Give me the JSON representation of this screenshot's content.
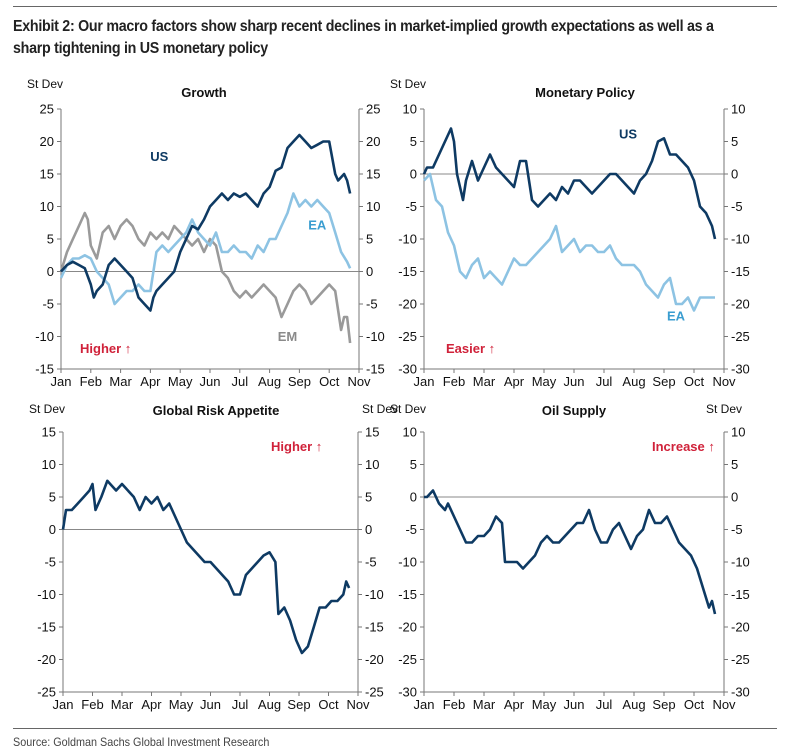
{
  "header": {
    "title": "Exhibit 2: Our macro factors show sharp recent declines in market-implied growth expectations as well as a sharp tightening in US monetary policy"
  },
  "footer": {
    "source": "Source: Goldman Sachs Global Investment Research"
  },
  "colors": {
    "us_navy": "#0e3a63",
    "ea_lightblue": "#8dc3e3",
    "em_gray": "#9a9a9a",
    "annotation_red": "#d0223a",
    "axis_gray": "#777777"
  },
  "chart_data": [
    {
      "id": "growth",
      "type": "line",
      "title": "Growth",
      "ylabel_left": "St Dev",
      "ylabel_right": "",
      "ylim": [
        -15,
        25
      ],
      "yticks": [
        25,
        20,
        15,
        10,
        5,
        0,
        -5,
        -10,
        -15
      ],
      "categories": [
        "Jan",
        "Feb",
        "Mar",
        "Apr",
        "May",
        "Jun",
        "Jul",
        "Aug",
        "Sep",
        "Oct",
        "Nov"
      ],
      "annotation": "Higher ↑",
      "annotation_pos": "bottom-left",
      "x_unit": "months since Jan 1",
      "series": [
        {
          "name": "US",
          "label_color": "#0e3a63",
          "color": "#0e3a63",
          "x": [
            0,
            0.2,
            0.4,
            0.6,
            0.8,
            1.0,
            1.1,
            1.2,
            1.4,
            1.6,
            1.8,
            2.0,
            2.2,
            2.4,
            2.6,
            2.8,
            3.0,
            3.1,
            3.2,
            3.4,
            3.6,
            3.8,
            4.0,
            4.2,
            4.4,
            4.6,
            4.8,
            5.0,
            5.2,
            5.4,
            5.6,
            5.8,
            6.0,
            6.2,
            6.4,
            6.6,
            6.8,
            7.0,
            7.2,
            7.4,
            7.6,
            7.8,
            8.0,
            8.2,
            8.4,
            8.6,
            8.8,
            9.0,
            9.2,
            9.3,
            9.5,
            9.6,
            9.7
          ],
          "y": [
            0,
            1,
            1.5,
            1,
            0.5,
            -2,
            -4,
            -3,
            -2,
            1,
            2,
            1,
            0,
            -1,
            -4,
            -5,
            -6,
            -4,
            -3,
            -2,
            -1,
            0,
            3,
            5,
            7,
            6.5,
            8,
            10,
            11,
            12,
            11,
            12,
            11.5,
            12,
            11,
            10,
            12,
            13,
            15.5,
            16,
            19,
            20,
            21,
            20,
            19,
            19.5,
            20,
            20,
            15,
            14,
            15,
            14,
            12
          ]
        },
        {
          "name": "EA",
          "label_color": "#3a9dd0",
          "color": "#8dc3e3",
          "x": [
            0,
            0.2,
            0.4,
            0.6,
            0.8,
            1.0,
            1.2,
            1.4,
            1.6,
            1.8,
            2.0,
            2.2,
            2.4,
            2.6,
            2.8,
            3.0,
            3.2,
            3.4,
            3.6,
            3.8,
            4.0,
            4.2,
            4.4,
            4.6,
            4.8,
            5.0,
            5.2,
            5.4,
            5.6,
            5.8,
            6.0,
            6.2,
            6.4,
            6.6,
            6.8,
            7.0,
            7.2,
            7.4,
            7.6,
            7.8,
            8.0,
            8.2,
            8.4,
            8.6,
            8.8,
            9.0,
            9.2,
            9.4,
            9.6,
            9.7
          ],
          "y": [
            -1,
            1,
            2,
            2,
            2.5,
            2,
            0,
            -1,
            -2,
            -5,
            -4,
            -3,
            -3,
            -2,
            -3,
            -3,
            3,
            4,
            3,
            4,
            5,
            6,
            8,
            6,
            5,
            4,
            6,
            3,
            3,
            4,
            3,
            3,
            2,
            4,
            3,
            5,
            5,
            7,
            9,
            12,
            10,
            11,
            10,
            11,
            10,
            9,
            6,
            3,
            1.5,
            0.5
          ]
        },
        {
          "name": "EM",
          "label_color": "#8a8a8a",
          "color": "#9a9a9a",
          "x": [
            0,
            0.2,
            0.4,
            0.6,
            0.8,
            0.9,
            1.0,
            1.2,
            1.4,
            1.6,
            1.8,
            2.0,
            2.2,
            2.4,
            2.6,
            2.8,
            3.0,
            3.2,
            3.4,
            3.6,
            3.8,
            4.0,
            4.2,
            4.4,
            4.6,
            4.8,
            5.0,
            5.2,
            5.4,
            5.6,
            5.8,
            6.0,
            6.2,
            6.4,
            6.6,
            6.8,
            7.0,
            7.2,
            7.4,
            7.6,
            7.8,
            8.0,
            8.2,
            8.4,
            8.6,
            8.8,
            9.0,
            9.2,
            9.4,
            9.5,
            9.6,
            9.7
          ],
          "y": [
            0,
            3,
            5,
            7,
            9,
            8,
            4,
            2,
            6,
            7,
            5,
            7,
            8,
            7,
            5,
            4,
            6,
            5,
            6,
            5,
            7,
            6,
            5,
            4,
            5,
            3,
            5,
            4,
            0,
            -1,
            -3,
            -4,
            -3,
            -4,
            -3,
            -2,
            -3,
            -4,
            -7,
            -5,
            -3,
            -2,
            -3,
            -5,
            -4,
            -3,
            -2,
            -3,
            -9,
            -7,
            -7,
            -11
          ]
        }
      ]
    },
    {
      "id": "monetary",
      "type": "line",
      "title": "Monetary Policy",
      "ylabel_left": "St Dev",
      "ylabel_right": "",
      "ylim": [
        -30,
        10
      ],
      "yticks": [
        10,
        5,
        0,
        -5,
        -10,
        -15,
        -20,
        -25,
        -30
      ],
      "categories": [
        "Jan",
        "Feb",
        "Mar",
        "Apr",
        "May",
        "Jun",
        "Jul",
        "Aug",
        "Sep",
        "Oct",
        "Nov"
      ],
      "annotation": "Easier ↑",
      "annotation_pos": "bottom-left",
      "x_unit": "months since Jan 1",
      "series": [
        {
          "name": "US",
          "label_color": "#0e3a63",
          "color": "#0e3a63",
          "x": [
            0,
            0.1,
            0.3,
            0.5,
            0.6,
            0.8,
            0.9,
            1.0,
            1.1,
            1.3,
            1.4,
            1.6,
            1.8,
            2.0,
            2.2,
            2.4,
            2.6,
            2.8,
            3.0,
            3.2,
            3.4,
            3.6,
            3.8,
            4.0,
            4.2,
            4.4,
            4.6,
            4.8,
            5.0,
            5.2,
            5.4,
            5.6,
            5.8,
            6.0,
            6.2,
            6.4,
            6.6,
            6.8,
            7.0,
            7.2,
            7.4,
            7.6,
            7.8,
            8.0,
            8.2,
            8.4,
            8.6,
            8.8,
            9.0,
            9.2,
            9.4,
            9.6,
            9.7
          ],
          "y": [
            0,
            1,
            1,
            3,
            4,
            6,
            7,
            5,
            0,
            -4,
            -1,
            2,
            -1,
            1,
            3,
            1,
            0,
            -1,
            -2,
            2,
            2,
            -4,
            -5,
            -4,
            -3,
            -4,
            -2,
            -3,
            -1,
            -1,
            -2,
            -3,
            -2,
            -1,
            0,
            0,
            -1,
            -2,
            -3,
            -1,
            0,
            2,
            5,
            5.5,
            3,
            3,
            2,
            1,
            -1,
            -5,
            -6,
            -8,
            -10
          ]
        },
        {
          "name": "EA",
          "label_color": "#3a9dd0",
          "color": "#8dc3e3",
          "x": [
            0,
            0.2,
            0.4,
            0.6,
            0.8,
            1.0,
            1.2,
            1.4,
            1.5,
            1.6,
            1.8,
            2.0,
            2.2,
            2.4,
            2.6,
            2.8,
            3.0,
            3.2,
            3.4,
            3.6,
            3.8,
            4.0,
            4.2,
            4.4,
            4.6,
            4.8,
            5.0,
            5.2,
            5.4,
            5.6,
            5.8,
            6.0,
            6.2,
            6.4,
            6.6,
            6.8,
            7.0,
            7.2,
            7.4,
            7.6,
            7.8,
            8.0,
            8.2,
            8.4,
            8.6,
            8.8,
            9.0,
            9.2,
            9.4,
            9.6,
            9.7
          ],
          "y": [
            -1,
            0,
            -4,
            -5,
            -9,
            -11,
            -15,
            -16,
            -15,
            -14,
            -13,
            -16,
            -15,
            -16,
            -17,
            -15,
            -13,
            -14,
            -14,
            -13,
            -12,
            -11,
            -10,
            -8,
            -12,
            -11,
            -10,
            -12,
            -11,
            -11,
            -12,
            -12,
            -11,
            -13,
            -14,
            -14,
            -14,
            -15,
            -17,
            -18,
            -19,
            -17,
            -16,
            -20,
            -20,
            -19,
            -21,
            -19,
            -19,
            -19,
            -19
          ]
        }
      ]
    },
    {
      "id": "risk",
      "type": "line",
      "title": "Global Risk Appetite",
      "ylabel_left": "St Dev",
      "ylabel_right": "St Dev",
      "ylim": [
        -25,
        15
      ],
      "yticks": [
        15,
        10,
        5,
        0,
        -5,
        -10,
        -15,
        -20,
        -25
      ],
      "categories": [
        "Jan",
        "Feb",
        "Mar",
        "Apr",
        "May",
        "Jun",
        "Jul",
        "Aug",
        "Sep",
        "Oct",
        "Nov"
      ],
      "annotation": "Higher ↑",
      "annotation_pos": "top-right",
      "x_unit": "months since Jan 1",
      "series": [
        {
          "name": "Risk Appetite",
          "color": "#0e3a63",
          "x": [
            0,
            0.1,
            0.3,
            0.5,
            0.7,
            0.9,
            1.0,
            1.1,
            1.3,
            1.5,
            1.6,
            1.8,
            2.0,
            2.2,
            2.4,
            2.6,
            2.8,
            3.0,
            3.2,
            3.4,
            3.6,
            3.8,
            4.0,
            4.2,
            4.4,
            4.6,
            4.8,
            5.0,
            5.2,
            5.4,
            5.6,
            5.8,
            6.0,
            6.2,
            6.4,
            6.6,
            6.8,
            7.0,
            7.2,
            7.3,
            7.5,
            7.7,
            7.9,
            8.1,
            8.3,
            8.5,
            8.7,
            8.9,
            9.1,
            9.3,
            9.5,
            9.6,
            9.7
          ],
          "y": [
            0,
            3,
            3,
            4,
            5,
            6,
            7,
            3,
            5,
            7.5,
            7,
            6,
            7,
            6,
            5,
            3,
            5,
            4,
            5,
            3,
            4,
            2,
            0,
            -2,
            -3,
            -4,
            -5,
            -5,
            -6,
            -7,
            -8,
            -10,
            -10,
            -7,
            -6,
            -5,
            -4,
            -3.5,
            -5,
            -13,
            -12,
            -14,
            -17,
            -19,
            -18,
            -15,
            -12,
            -12,
            -11,
            -11,
            -10,
            -8,
            -9
          ]
        }
      ]
    },
    {
      "id": "oil",
      "type": "line",
      "title": "Oil Supply",
      "ylabel_left": "St Dev",
      "ylabel_right": "St Dev",
      "ylim": [
        -30,
        10
      ],
      "yticks": [
        10,
        5,
        0,
        -5,
        -10,
        -15,
        -20,
        -25,
        -30
      ],
      "categories": [
        "Jan",
        "Feb",
        "Mar",
        "Apr",
        "May",
        "Jun",
        "Jul",
        "Aug",
        "Sep",
        "Oct",
        "Nov"
      ],
      "annotation": "Increase ↑",
      "annotation_pos": "top-right",
      "x_unit": "months since Jan 1",
      "series": [
        {
          "name": "Oil Supply",
          "color": "#0e3a63",
          "x": [
            0,
            0.1,
            0.3,
            0.5,
            0.7,
            0.8,
            1.0,
            1.2,
            1.4,
            1.6,
            1.8,
            2.0,
            2.2,
            2.4,
            2.6,
            2.7,
            2.9,
            3.1,
            3.3,
            3.5,
            3.7,
            3.9,
            4.1,
            4.3,
            4.5,
            4.7,
            4.9,
            5.1,
            5.3,
            5.5,
            5.7,
            5.9,
            6.1,
            6.3,
            6.5,
            6.7,
            6.9,
            7.1,
            7.3,
            7.5,
            7.7,
            7.9,
            8.1,
            8.3,
            8.5,
            8.7,
            8.9,
            9.1,
            9.3,
            9.5,
            9.6,
            9.7
          ],
          "y": [
            0,
            0,
            1,
            -1,
            -2,
            -1,
            -3,
            -5,
            -7,
            -7,
            -6,
            -6,
            -5,
            -3,
            -4,
            -10,
            -10,
            -10,
            -11,
            -10,
            -9,
            -7,
            -6,
            -7,
            -7,
            -6,
            -5,
            -4,
            -4,
            -2,
            -5,
            -7,
            -7,
            -5,
            -4,
            -6,
            -8,
            -6,
            -5,
            -2,
            -4,
            -4,
            -3,
            -5,
            -7,
            -8,
            -9,
            -11,
            -14,
            -17,
            -16,
            -18
          ]
        }
      ]
    }
  ]
}
